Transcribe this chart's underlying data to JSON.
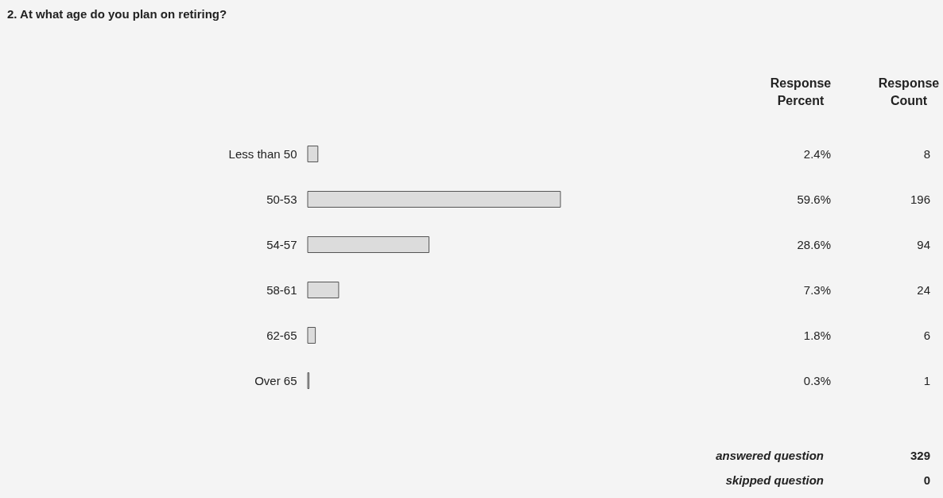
{
  "chart_data": {
    "type": "bar",
    "orientation": "horizontal",
    "title": "2. At what age do you plan on retiring?",
    "categories": [
      "Less than 50",
      "50-53",
      "54-57",
      "58-61",
      "62-65",
      "Over 65"
    ],
    "values": [
      2.4,
      59.6,
      28.6,
      7.3,
      1.8,
      0.3
    ],
    "value_labels": [
      "2.4%",
      "59.6%",
      "28.6%",
      "7.3%",
      "1.8%",
      "0.3%"
    ],
    "color": "#dcdcdc",
    "tick_labels": "y",
    "grid": false,
    "annotations": [
      "Response Percent",
      "Response Count",
      "8",
      "196",
      "94",
      "24",
      "6",
      "1",
      "answered question",
      "329",
      "skipped question",
      "0"
    ]
  }
}
